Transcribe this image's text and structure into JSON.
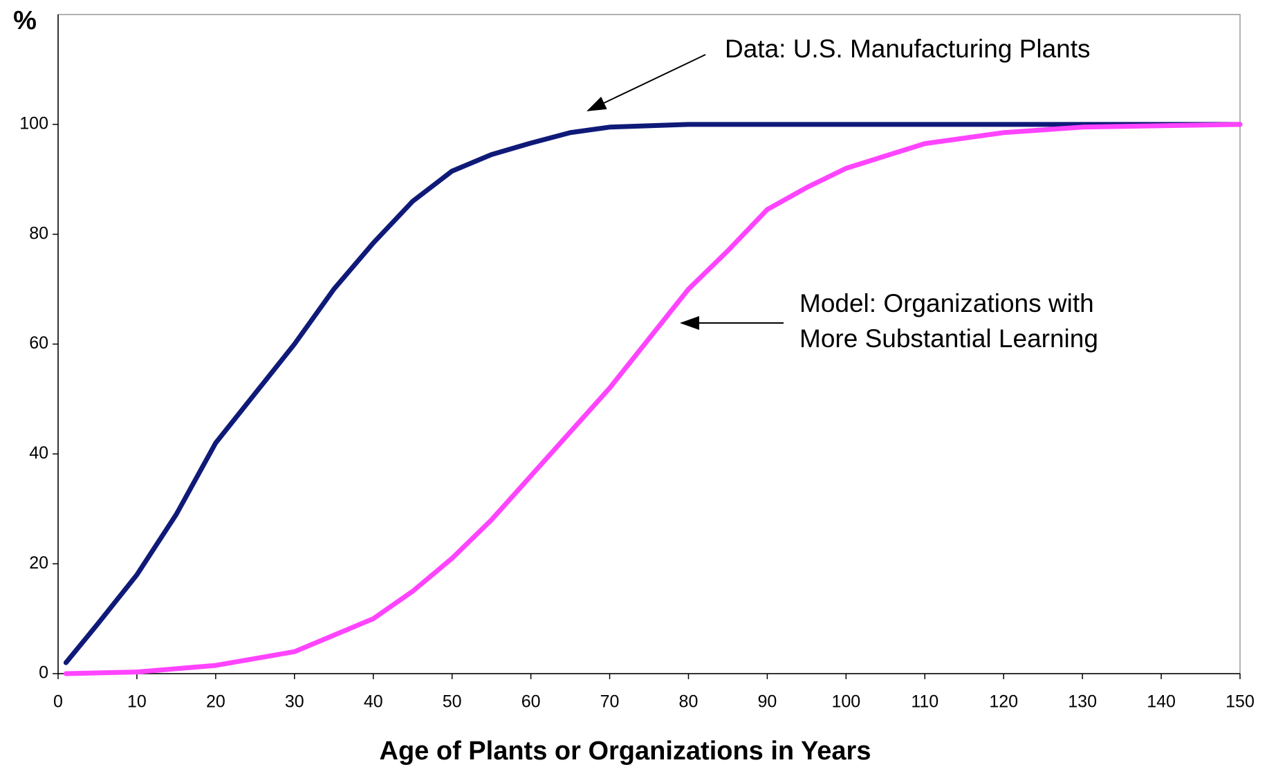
{
  "chart_data": {
    "type": "line",
    "y_label": "%",
    "x_label": "Age of Plants or Organizations in Years",
    "annotations": [
      "Data: U.S. Manufacturing Plants",
      "Model: Organizations with",
      "More Substantial Learning"
    ],
    "series": [
      {
        "color": "#0f1a78",
        "x": [
          1,
          5,
          10,
          15,
          20,
          25,
          30,
          35,
          40,
          45,
          50,
          55,
          60,
          65,
          70,
          80,
          90,
          100,
          120,
          150
        ],
        "values": [
          2,
          9,
          18,
          29,
          42,
          51,
          60,
          70,
          78.4,
          86,
          91.5,
          94.5,
          96.6,
          98.5,
          99.5,
          100,
          100,
          100,
          100,
          100
        ]
      },
      {
        "color": "#ff44ff",
        "x": [
          1,
          10,
          20,
          30,
          40,
          45,
          50,
          55,
          60,
          65,
          70,
          75,
          80,
          85,
          90,
          95,
          100,
          110,
          120,
          130,
          150
        ],
        "values": [
          0,
          0.3,
          1.5,
          4,
          10,
          15,
          21,
          28,
          36,
          44,
          52,
          61,
          70,
          77,
          84.5,
          88.5,
          92,
          96.5,
          98.5,
          99.5,
          100
        ]
      }
    ],
    "xlim": [
      0,
      150
    ],
    "xticks": [
      0,
      10,
      20,
      30,
      40,
      50,
      60,
      70,
      80,
      90,
      100,
      110,
      120,
      130,
      140,
      150
    ],
    "ylim": [
      0,
      120
    ],
    "yticks": [
      0,
      20,
      40,
      60,
      80,
      100
    ]
  }
}
